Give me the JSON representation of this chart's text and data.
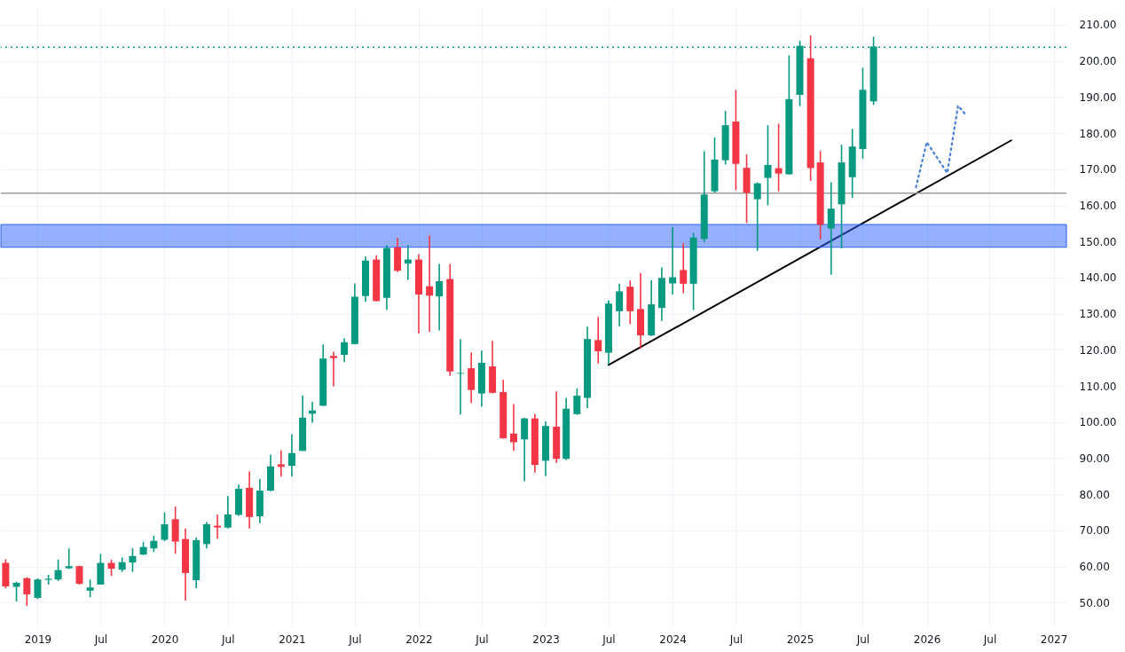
{
  "chart_data": {
    "type": "candlestick",
    "x": [
      "2018-10",
      "2018-11",
      "2018-12",
      "2019-01",
      "2019-02",
      "2019-03",
      "2019-04",
      "2019-05",
      "2019-06",
      "2019-07",
      "2019-08",
      "2019-09",
      "2019-10",
      "2019-11",
      "2019-12",
      "2020-01",
      "2020-02",
      "2020-03",
      "2020-04",
      "2020-05",
      "2020-06",
      "2020-07",
      "2020-08",
      "2020-09",
      "2020-10",
      "2020-11",
      "2020-12",
      "2021-01",
      "2021-02",
      "2021-03",
      "2021-04",
      "2021-05",
      "2021-06",
      "2021-07",
      "2021-08",
      "2021-09",
      "2021-10",
      "2021-11",
      "2021-12",
      "2022-01",
      "2022-02",
      "2022-03",
      "2022-04",
      "2022-05",
      "2022-06",
      "2022-07",
      "2022-08",
      "2022-09",
      "2022-10",
      "2022-11",
      "2022-12",
      "2023-01",
      "2023-02",
      "2023-03",
      "2023-04",
      "2023-05",
      "2023-06",
      "2023-07",
      "2023-08",
      "2023-09",
      "2023-10",
      "2023-11",
      "2023-12",
      "2024-01",
      "2024-02",
      "2024-03",
      "2024-04",
      "2024-05",
      "2024-06",
      "2024-07",
      "2024-08",
      "2024-09",
      "2024-10",
      "2024-11",
      "2024-12",
      "2025-01",
      "2025-02",
      "2025-03",
      "2025-04",
      "2025-05",
      "2025-06",
      "2025-07",
      "2025-08"
    ],
    "ohlc": [
      [
        61,
        62,
        54,
        54.5
      ],
      [
        54.4,
        55.8,
        50.3,
        55.5
      ],
      [
        56.8,
        57,
        49.1,
        52.3
      ],
      [
        51.3,
        56.7,
        51,
        56.4
      ],
      [
        56.3,
        57.7,
        55,
        56.6
      ],
      [
        56.4,
        61.9,
        56,
        59
      ],
      [
        59.5,
        65,
        59.3,
        60.1
      ],
      [
        60.1,
        60.2,
        55,
        55.2
      ],
      [
        53.3,
        56.4,
        51.5,
        54.2
      ],
      [
        55,
        63.5,
        55,
        61
      ],
      [
        61,
        61.9,
        57.4,
        59.4
      ],
      [
        59.1,
        62.5,
        58.5,
        61.2
      ],
      [
        61.1,
        65.1,
        58.5,
        62.9
      ],
      [
        63.3,
        66.8,
        63.2,
        65.4
      ],
      [
        65,
        68.5,
        64,
        67.1
      ],
      [
        67.4,
        75,
        67,
        71.7
      ],
      [
        73.1,
        76.6,
        63.5,
        66.9
      ],
      [
        67.6,
        70.5,
        50.6,
        58.2
      ],
      [
        56.2,
        68,
        54,
        67.3
      ],
      [
        66.2,
        72.3,
        65,
        71.7
      ],
      [
        71.3,
        74.4,
        67.7,
        70.8
      ],
      [
        70.8,
        79.5,
        70.5,
        74.4
      ],
      [
        74.3,
        82.7,
        74,
        81.5
      ],
      [
        81.8,
        86.3,
        70.5,
        73.7
      ],
      [
        73.9,
        84.2,
        72,
        81
      ],
      [
        81,
        91,
        80.8,
        87.7
      ],
      [
        88.3,
        92.2,
        84.9,
        87.6
      ],
      [
        87.9,
        96.6,
        84.9,
        91.4
      ],
      [
        92,
        107.4,
        92,
        101.2
      ],
      [
        102.3,
        105.6,
        99.8,
        103.2
      ],
      [
        104.5,
        121.5,
        104.5,
        117.6
      ],
      [
        118.3,
        119.5,
        109.9,
        117.7
      ],
      [
        118.6,
        123.2,
        116.6,
        122.1
      ],
      [
        121.6,
        138.4,
        121.5,
        134.7
      ],
      [
        134.9,
        145.9,
        133.3,
        144.7
      ],
      [
        145,
        146.2,
        133.4,
        133.5
      ],
      [
        134.4,
        149,
        131.1,
        148.2
      ],
      [
        148.4,
        151,
        141.5,
        141.9
      ],
      [
        143.9,
        149,
        139.4,
        145
      ],
      [
        145,
        146.5,
        124.5,
        135.3
      ],
      [
        137.6,
        151.6,
        125,
        135
      ],
      [
        134.8,
        143.8,
        125.4,
        139
      ],
      [
        139.6,
        143.8,
        112.8,
        114
      ],
      [
        113.4,
        123,
        102.1,
        113.6
      ],
      [
        114.9,
        119.3,
        105.2,
        108.9
      ],
      [
        107.9,
        119.8,
        104.3,
        116.4
      ],
      [
        115.4,
        122.5,
        107.9,
        108.1
      ],
      [
        108.3,
        111.7,
        95.4,
        95.5
      ],
      [
        96.8,
        105,
        92,
        94.4
      ],
      [
        95.2,
        101.2,
        83.6,
        101
      ],
      [
        101,
        102.2,
        86,
        88.1
      ],
      [
        89.3,
        100.2,
        85,
        98.9
      ],
      [
        98.7,
        108.5,
        88.7,
        89.8
      ],
      [
        89.8,
        106.7,
        89.5,
        103.7
      ],
      [
        102.2,
        109.3,
        102,
        107.3
      ],
      [
        106.7,
        126.4,
        103.8,
        123
      ],
      [
        122.7,
        129.1,
        116.2,
        119.6
      ],
      [
        119.2,
        133.7,
        116,
        132.8
      ],
      [
        130.7,
        138.3,
        126.5,
        136.2
      ],
      [
        137.5,
        139.2,
        127.1,
        130.7
      ],
      [
        131.3,
        141.3,
        120.3,
        124
      ],
      [
        124,
        139.3,
        123.8,
        132.6
      ],
      [
        131.6,
        142.9,
        128,
        139.9
      ],
      [
        138.4,
        154,
        135.3,
        140.1
      ],
      [
        142.1,
        149.5,
        135.7,
        138.3
      ],
      [
        138.3,
        152.4,
        131,
        151.1
      ],
      [
        150.7,
        175,
        149.8,
        163
      ],
      [
        163.9,
        178.8,
        163.5,
        172.7
      ],
      [
        172.5,
        186.2,
        171.3,
        182.2
      ],
      [
        183.2,
        192,
        164.2,
        171.5
      ],
      [
        170.4,
        174.1,
        155.1,
        163.5
      ],
      [
        161.7,
        166.4,
        147.4,
        166.1
      ],
      [
        167.6,
        182.2,
        160,
        171.2
      ],
      [
        170.3,
        182.6,
        163.9,
        168.8
      ],
      [
        168.6,
        201.5,
        168.5,
        189.4
      ],
      [
        190.6,
        205.6,
        187.5,
        204.2
      ],
      [
        200.7,
        207.1,
        166.8,
        170.3
      ],
      [
        171.9,
        175.1,
        150.6,
        154.6
      ],
      [
        153.6,
        166.4,
        140.8,
        159.1
      ],
      [
        160.3,
        176.8,
        148.1,
        171.9
      ],
      [
        167.8,
        181.2,
        162.1,
        176.3
      ],
      [
        175.6,
        198.1,
        172.9,
        192
      ],
      [
        188.8,
        206.7,
        187.8,
        204
      ]
    ],
    "series": [
      {
        "type": "line",
        "color": "#000000",
        "line_style": "solid",
        "x": [
          "2023-07",
          "2026-09"
        ],
        "values": [
          115.8,
          178
        ]
      },
      {
        "type": "line",
        "color": "#4a7fd6",
        "line_style": "dotted",
        "x": [
          "2025-12",
          "2026-01",
          "2026-03",
          "2026-04",
          "2026-04-24"
        ],
        "values": [
          165,
          177.5,
          169,
          187.6,
          185
        ]
      }
    ],
    "ref_lines": [
      {
        "axis": "y",
        "value": 163.4,
        "color": "#9e9e9e",
        "line_style": "solid"
      },
      {
        "axis": "y",
        "value": 203.8,
        "color": "#089981",
        "line_style": "dotted"
      }
    ],
    "bands": [
      {
        "axis": "y",
        "from": 148.4,
        "to": 154.7,
        "color": "#2962ff"
      }
    ],
    "xlim": [
      "2018-09-30",
      "2027-01-25"
    ],
    "xticks": [
      {
        "value": "2019-01-01",
        "label": "2019"
      },
      {
        "value": "2019-07-01",
        "label": "Jul"
      },
      {
        "value": "2020-01-01",
        "label": "2020"
      },
      {
        "value": "2020-07-01",
        "label": "Jul"
      },
      {
        "value": "2021-01-01",
        "label": "2021"
      },
      {
        "value": "2021-07-01",
        "label": "Jul"
      },
      {
        "value": "2022-01-01",
        "label": "2022"
      },
      {
        "value": "2022-07-01",
        "label": "Jul"
      },
      {
        "value": "2023-01-01",
        "label": "2023"
      },
      {
        "value": "2023-07-01",
        "label": "Jul"
      },
      {
        "value": "2024-01-01",
        "label": "2024"
      },
      {
        "value": "2024-07-01",
        "label": "Jul"
      },
      {
        "value": "2025-01-01",
        "label": "2025"
      },
      {
        "value": "2025-07-01",
        "label": "Jul"
      },
      {
        "value": "2026-01-01",
        "label": "2026"
      },
      {
        "value": "2026-07-01",
        "label": "Jul"
      },
      {
        "value": "2027-01-01",
        "label": "2027"
      }
    ],
    "ylim": [
      43.2,
      215.4
    ],
    "yticks": [
      {
        "value": 50,
        "label": "50.00"
      },
      {
        "value": 60,
        "label": "60.00"
      },
      {
        "value": 70,
        "label": "70.00"
      },
      {
        "value": 80,
        "label": "80.00"
      },
      {
        "value": 90,
        "label": "90.00"
      },
      {
        "value": 100,
        "label": "100.00"
      },
      {
        "value": 110,
        "label": "110.00"
      },
      {
        "value": 120,
        "label": "120.00"
      },
      {
        "value": 130,
        "label": "130.00"
      },
      {
        "value": 140,
        "label": "140.00"
      },
      {
        "value": 150,
        "label": "150.00"
      },
      {
        "value": 160,
        "label": "160.00"
      },
      {
        "value": 170,
        "label": "170.00"
      },
      {
        "value": 180,
        "label": "180.00"
      },
      {
        "value": 190,
        "label": "190.00"
      },
      {
        "value": 200,
        "label": "200.00"
      },
      {
        "value": 210,
        "label": "210.00"
      }
    ],
    "grid": true
  }
}
